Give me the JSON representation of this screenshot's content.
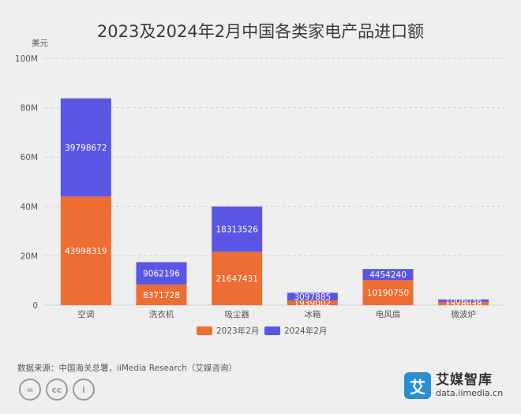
{
  "title": "2023及2024年2月中国各类家电产品进口额",
  "footer": {
    "source": "数据来源：中国海关总署，iiMedia Research（艾媒咨询）",
    "brand_name": "艾媒智库",
    "brand_url": "data.iimedia.cn",
    "brand_logo_char": "艾",
    "license_icons": [
      "cc-equals-icon",
      "cc-icon",
      "cc-by-icon"
    ]
  },
  "colors": {
    "series_2023": "#ee6d33",
    "series_2024": "#5b55e3",
    "grid": "#cfcfcf",
    "axis_text": "#555555"
  },
  "chart_data": {
    "type": "bar",
    "stacked": true,
    "title": "2023及2024年2月中国各类家电产品进口额",
    "ylabel": "美元",
    "xlabel": "",
    "ylim": [
      0,
      100000000
    ],
    "yticks": [
      0,
      20000000,
      40000000,
      60000000,
      80000000,
      100000000
    ],
    "ytick_labels": [
      "0",
      "20M",
      "40M",
      "60M",
      "80M",
      "100M"
    ],
    "categories": [
      "空调",
      "洗衣机",
      "吸尘器",
      "冰箱",
      "电风扇",
      "微波炉"
    ],
    "series": [
      {
        "name": "2023年2月",
        "values": [
          43998319,
          8371728,
          21647431,
          1939002,
          10190750,
          1328038
        ]
      },
      {
        "name": "2024年2月",
        "values": [
          39798672,
          9062196,
          18313526,
          3097885,
          4454240,
          1006036
        ]
      }
    ],
    "grid": true,
    "legend": "bottom-center"
  }
}
